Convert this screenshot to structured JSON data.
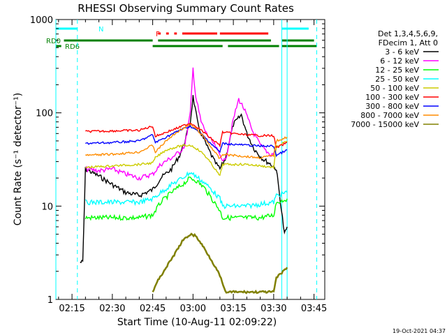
{
  "chart_data": {
    "type": "line",
    "title": "RHESSI Observing Summary Count Rates",
    "xlabel": "Start Time (10-Aug-11 02:09:22)",
    "ylabel": "Count Rate (s⁻¹ detector⁻¹)",
    "yscale": "log",
    "ylim": [
      1,
      1000
    ],
    "xlim": [
      "02:09",
      "03:49"
    ],
    "x_ticks": [
      "02:15",
      "02:30",
      "02:45",
      "03:00",
      "03:15",
      "03:30",
      "03:45"
    ],
    "y_ticks": [
      "1",
      "10",
      "100",
      "1000"
    ],
    "timestamp": "19-Oct-2021 04:37",
    "legend_header": [
      "Det 1,3,4,5,6,9,",
      "FDecim 1, Att 0"
    ],
    "legend_placement": "right",
    "series": [
      {
        "name": "3 - 6 keV",
        "color": "#000000",
        "x": [
          "02:18",
          "02:19",
          "02:20",
          "02:25",
          "02:30",
          "02:35",
          "02:40",
          "02:45",
          "02:48",
          "02:52",
          "02:55",
          "02:57",
          "02:59",
          "03:00",
          "03:02",
          "03:05",
          "03:08",
          "03:10",
          "03:12",
          "03:15",
          "03:18",
          "03:20",
          "03:23",
          "03:26",
          "03:29",
          "03:31",
          "03:34",
          "03:35"
        ],
        "y": [
          2.5,
          2.5,
          25,
          21,
          17,
          14,
          13,
          15,
          20,
          25,
          35,
          50,
          80,
          150,
          70,
          45,
          30,
          25,
          32,
          75,
          95,
          60,
          40,
          32,
          28,
          25,
          5,
          6
        ]
      },
      {
        "name": "6 - 12 keV",
        "color": "#ff00ff",
        "x": [
          "02:20",
          "02:25",
          "02:30",
          "02:35",
          "02:40",
          "02:45",
          "02:48",
          "02:52",
          "02:55",
          "02:57",
          "02:59",
          "03:00",
          "03:01",
          "03:03",
          "03:05",
          "03:08",
          "03:10",
          "03:12",
          "03:15",
          "03:17",
          "03:19",
          "03:22",
          "03:25",
          "03:29",
          "03:31"
        ],
        "y": [
          25,
          24,
          25,
          22,
          20,
          22,
          28,
          33,
          38,
          45,
          100,
          300,
          150,
          80,
          60,
          45,
          35,
          30,
          85,
          140,
          110,
          65,
          45,
          35,
          40
        ]
      },
      {
        "name": "12 - 25 keV",
        "color": "#00ff00",
        "x": [
          "02:20",
          "02:30",
          "02:40",
          "02:45",
          "02:48",
          "02:52",
          "02:56",
          "02:59",
          "03:01",
          "03:04",
          "03:07",
          "03:10",
          "03:11",
          "03:15",
          "03:20",
          "03:25",
          "03:30",
          "03:31",
          "03:35"
        ],
        "y": [
          7.5,
          7.5,
          7.5,
          8,
          11,
          14,
          17,
          20,
          19,
          16,
          12,
          9,
          7.5,
          7.5,
          7.5,
          7.5,
          8,
          11,
          12
        ]
      },
      {
        "name": "25 - 50 keV",
        "color": "#00ffff",
        "x": [
          "02:20",
          "02:30",
          "02:40",
          "02:45",
          "02:48",
          "02:52",
          "02:56",
          "02:59",
          "03:01",
          "03:04",
          "03:07",
          "03:10",
          "03:11",
          "03:15",
          "03:20",
          "03:25",
          "03:30",
          "03:31",
          "03:35"
        ],
        "y": [
          11,
          11,
          11,
          12,
          14,
          17,
          20,
          23,
          21,
          18,
          15,
          12,
          10,
          10,
          10,
          10.5,
          11,
          13,
          14
        ]
      },
      {
        "name": "50 - 100 keV",
        "color": "#cccc00",
        "x": [
          "02:20",
          "02:30",
          "02:40",
          "02:45",
          "02:46",
          "02:50",
          "02:55",
          "02:59",
          "03:01",
          "03:04",
          "03:07",
          "03:10",
          "03:11",
          "03:15",
          "03:20",
          "03:25",
          "03:30",
          "03:31",
          "03:35"
        ],
        "y": [
          26,
          27,
          28,
          29,
          33,
          40,
          44,
          45,
          42,
          36,
          28,
          21,
          28,
          28,
          28,
          27,
          26,
          43,
          50
        ]
      },
      {
        "name": "100 - 300 keV",
        "color": "#ff0000",
        "x": [
          "02:20",
          "02:30",
          "02:40",
          "02:45",
          "02:46",
          "02:50",
          "02:55",
          "02:59",
          "03:01",
          "03:04",
          "03:07",
          "03:10",
          "03:11",
          "03:15",
          "03:20",
          "03:25",
          "03:30",
          "03:31",
          "03:35"
        ],
        "y": [
          63,
          64,
          65,
          72,
          56,
          62,
          70,
          78,
          72,
          62,
          52,
          45,
          62,
          60,
          58,
          57,
          57,
          42,
          48
        ]
      },
      {
        "name": "300 - 800 keV",
        "color": "#0000ff",
        "x": [
          "02:20",
          "02:30",
          "02:40",
          "02:45",
          "02:46",
          "02:50",
          "02:55",
          "02:59",
          "03:01",
          "03:04",
          "03:07",
          "03:10",
          "03:11",
          "03:15",
          "03:20",
          "03:25",
          "03:30",
          "03:31",
          "03:35"
        ],
        "y": [
          47,
          48,
          50,
          58,
          48,
          55,
          65,
          72,
          66,
          56,
          46,
          38,
          47,
          46,
          45,
          44,
          44,
          35,
          40
        ]
      },
      {
        "name": "800 - 7000 keV",
        "color": "#ff8c00",
        "x": [
          "02:20",
          "02:30",
          "02:40",
          "02:45",
          "02:46",
          "02:50",
          "02:55",
          "02:59",
          "03:01",
          "03:04",
          "03:07",
          "03:10",
          "03:11",
          "03:15",
          "03:20",
          "03:25",
          "03:30",
          "03:31",
          "03:35"
        ],
        "y": [
          35,
          36,
          38,
          45,
          38,
          50,
          65,
          75,
          68,
          55,
          42,
          32,
          36,
          35,
          34,
          33,
          35,
          50,
          55
        ]
      },
      {
        "name": "7000 - 15000 keV",
        "color": "#808000",
        "x": [
          "02:45",
          "02:47",
          "02:50",
          "02:53",
          "02:56",
          "02:59",
          "03:01",
          "03:04",
          "03:07",
          "03:10",
          "03:12",
          "03:30",
          "03:31",
          "03:35"
        ],
        "y": [
          1.2,
          1.6,
          2.2,
          3.0,
          4.2,
          5.0,
          4.8,
          3.6,
          2.6,
          1.8,
          1.2,
          1.2,
          1.7,
          2.2
        ]
      }
    ],
    "flag_bars": [
      {
        "label": "N",
        "color": "#00ffff",
        "segments": [
          [
            "02:09",
            "02:17"
          ],
          [
            "03:33",
            "03:43"
          ]
        ]
      },
      {
        "label": "F",
        "color": "#ff0000",
        "segments": [
          [
            "02:47",
            "02:48"
          ],
          [
            "02:50",
            "02:51"
          ],
          [
            "02:53",
            "02:54"
          ],
          [
            "02:56",
            "03:09"
          ],
          [
            "03:10",
            "03:28"
          ]
        ]
      },
      {
        "label": "RD0",
        "color": "#008000",
        "segments": [
          [
            "02:12",
            "02:45"
          ],
          [
            "02:47",
            "03:29"
          ],
          [
            "03:33",
            "03:45"
          ]
        ]
      },
      {
        "label": "RD6",
        "color": "#008000",
        "segments": [
          [
            "02:09",
            "02:11"
          ],
          [
            "02:45",
            "03:11"
          ],
          [
            "03:13",
            "03:32"
          ],
          [
            "03:33",
            "03:46"
          ]
        ]
      }
    ],
    "vlines": [
      {
        "x": "02:09",
        "color": "#00ffff",
        "style": "solid"
      },
      {
        "x": "02:17",
        "color": "#00ffff",
        "style": "dashed"
      },
      {
        "x": "03:33",
        "color": "#00ffff",
        "style": "solid"
      },
      {
        "x": "03:35",
        "color": "#00ffff",
        "style": "solid"
      },
      {
        "x": "03:46",
        "color": "#00ffff",
        "style": "dashed"
      }
    ]
  }
}
